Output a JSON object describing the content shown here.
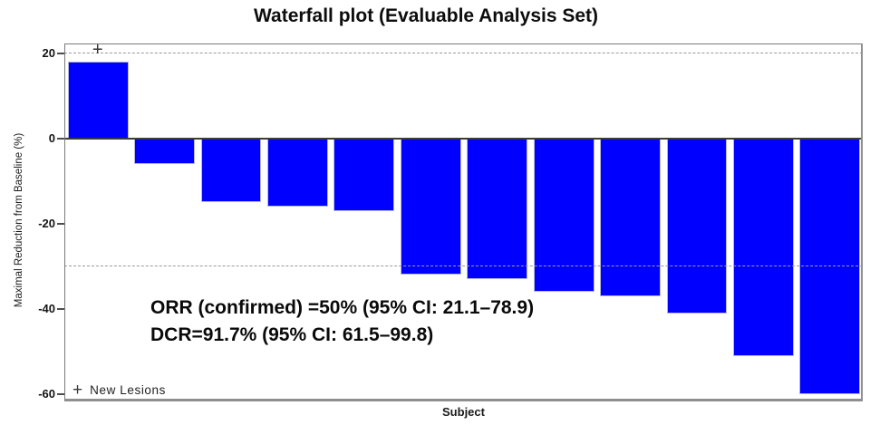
{
  "page": {
    "title": "Waterfall plot (Evaluable Analysis Set)"
  },
  "chart_data": {
    "type": "bar",
    "title": "Waterfall plot (Evaluable Analysis Set)",
    "xlabel": "Subject",
    "ylabel": "Maximal Reduction from Baseline (%)",
    "n_subjects": 12,
    "values": [
      18,
      -6,
      -15,
      -16,
      -17,
      -32,
      -33,
      -36,
      -37,
      -41,
      -51,
      -60
    ],
    "yticks": [
      20,
      0,
      -20,
      -40,
      -60
    ],
    "ylim": [
      -61.7,
      22.3
    ],
    "dashed_reference_lines": [
      20,
      -30
    ],
    "grid": "dashed reference lines only, no other grid",
    "bar_color": "#0000ff",
    "bar_border_color": "#b8b8d8",
    "zero_line_color": "#3c3c3c",
    "axis_frame_color": "#7a7a7a",
    "legend_position": "bottom-left inside plot",
    "legend": {
      "symbol": "+",
      "label": "New Lesions"
    },
    "new_lesion_markers": [
      {
        "bar_index": 0,
        "value": 20.5,
        "symbol": "+"
      }
    ],
    "annotations": {
      "orr": "ORR (confirmed) =50% (95% CI: 21.1–78.9)",
      "dcr": "DCR=91.7% (95% CI: 61.5–99.8)"
    }
  }
}
